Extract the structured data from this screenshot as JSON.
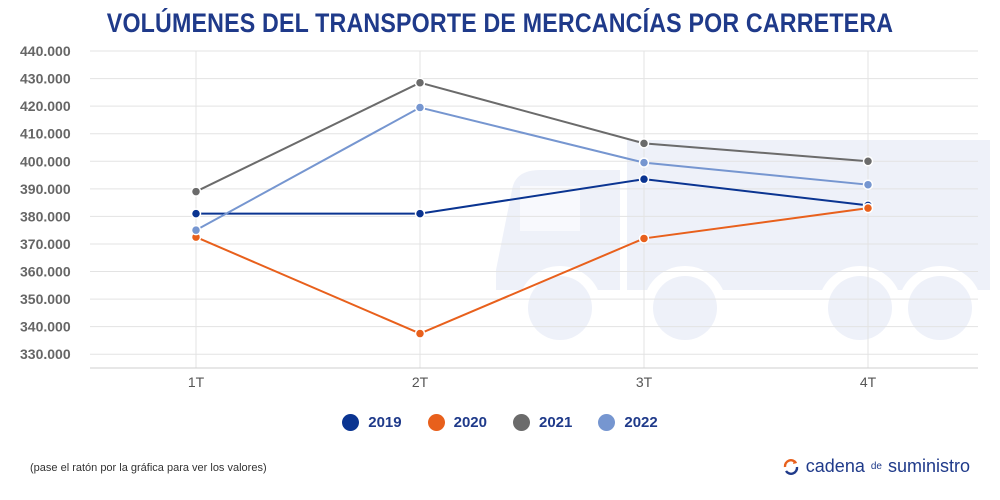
{
  "title": "VOLÚMENES DEL TRANSPORTE DE MERCANCÍAS POR CARRETERA",
  "note": "(pase el ratón por la gráfica para ver los valores)",
  "brand": {
    "part1": "cadena",
    "part2": "de",
    "part3": "suministro"
  },
  "colors": {
    "accent": "#1f3a8a",
    "truck": "#eef1f9",
    "grid": "#e3e3e3"
  },
  "chart_data": {
    "type": "line",
    "title": "VOLÚMENES DEL TRANSPORTE DE MERCANCÍAS POR CARRETERA",
    "categories": [
      "1T",
      "2T",
      "3T",
      "4T"
    ],
    "ylim": [
      325000,
      440000
    ],
    "yticks": [
      {
        "value": 440000,
        "label": "440.000"
      },
      {
        "value": 430000,
        "label": "430.000"
      },
      {
        "value": 420000,
        "label": "420.000"
      },
      {
        "value": 410000,
        "label": "410.000"
      },
      {
        "value": 400000,
        "label": "400.000"
      },
      {
        "value": 390000,
        "label": "390.000"
      },
      {
        "value": 380000,
        "label": "380.000"
      },
      {
        "value": 370000,
        "label": "370.000"
      },
      {
        "value": 360000,
        "label": "360.000"
      },
      {
        "value": 350000,
        "label": "350.000"
      },
      {
        "value": 340000,
        "label": "340.000"
      },
      {
        "value": 330000,
        "label": "330.000"
      }
    ],
    "grid": true,
    "legend_position": "bottom",
    "series": [
      {
        "name": "2019",
        "color": "#0a3491",
        "values": [
          381000,
          381000,
          393500,
          384000
        ]
      },
      {
        "name": "2020",
        "color": "#e8601c",
        "values": [
          372500,
          337500,
          372000,
          383000
        ]
      },
      {
        "name": "2021",
        "color": "#6b6b6b",
        "values": [
          389000,
          428500,
          406500,
          400000
        ]
      },
      {
        "name": "2022",
        "color": "#7696d0",
        "values": [
          375000,
          419500,
          399500,
          391500
        ]
      }
    ]
  }
}
